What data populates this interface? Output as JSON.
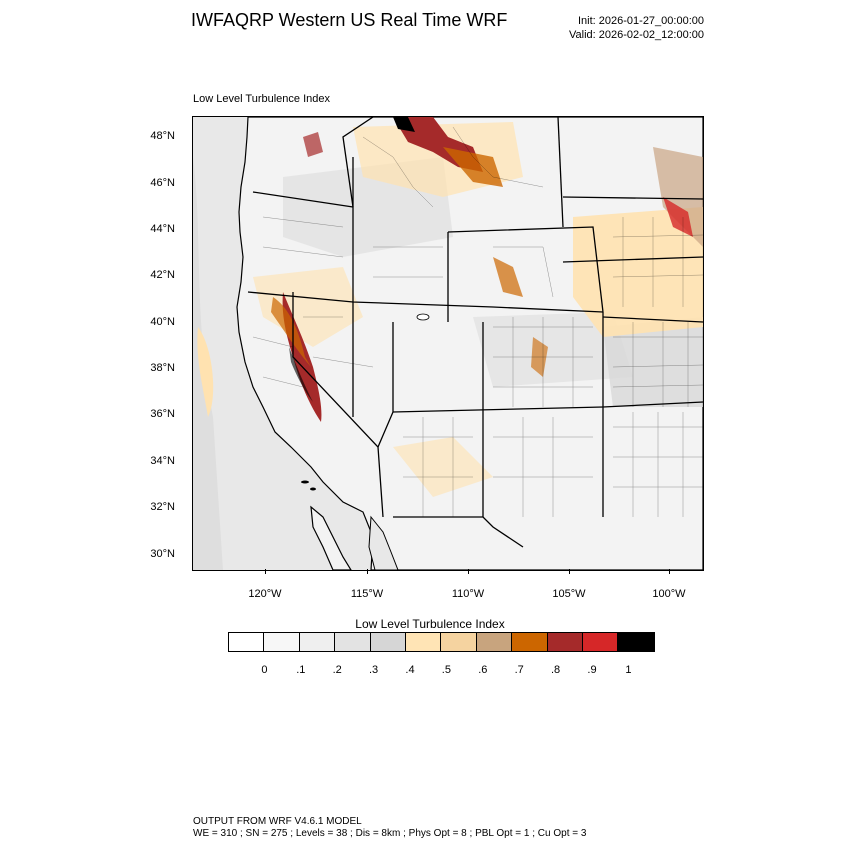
{
  "header": {
    "title": "IWFAQRP Western US Real Time WRF",
    "init": "Init: 2026-01-27_00:00:00",
    "valid": "Valid: 2026-02-02_12:00:00"
  },
  "field_label": "Low Level Turbulence Index",
  "map": {
    "lat_ticks": [
      "48°N",
      "46°N",
      "44°N",
      "42°N",
      "40°N",
      "38°N",
      "36°N",
      "34°N",
      "32°N",
      "30°N"
    ],
    "lon_ticks": [
      "120°W",
      "115°W",
      "110°W",
      "105°W",
      "100°W"
    ],
    "colors": {
      "ocean": "#e8e8e8",
      "land": "#f3f3f3",
      "level_03": "#dcdcdc",
      "level_04": "#ffe2b0",
      "level_05": "#f7d6a8",
      "level_06": "#c9a483",
      "level_07": "#cc6600",
      "level_08": "#a52a2a",
      "level_09": "#d62728",
      "level_10": "#000000"
    }
  },
  "colorbar": {
    "title": "Low Level Turbulence Index",
    "colors": [
      "#ffffff",
      "#f7f7f7",
      "#efefef",
      "#e3e3e3",
      "#d6d6d6",
      "#ffe4b5",
      "#f5d3a0",
      "#c8a47e",
      "#cc6600",
      "#a52a2a",
      "#d62728",
      "#000000"
    ],
    "labels": [
      "0",
      ".1",
      ".2",
      ".3",
      ".4",
      ".5",
      ".6",
      ".7",
      ".8",
      ".9",
      "1"
    ]
  },
  "footer": {
    "line1": "OUTPUT FROM WRF V4.6.1 MODEL",
    "line2": "WE = 310 ; SN = 275 ; Levels = 38 ; Dis = 8km ; Phys Opt = 8 ; PBL Opt = 1 ; Cu Opt = 3"
  }
}
